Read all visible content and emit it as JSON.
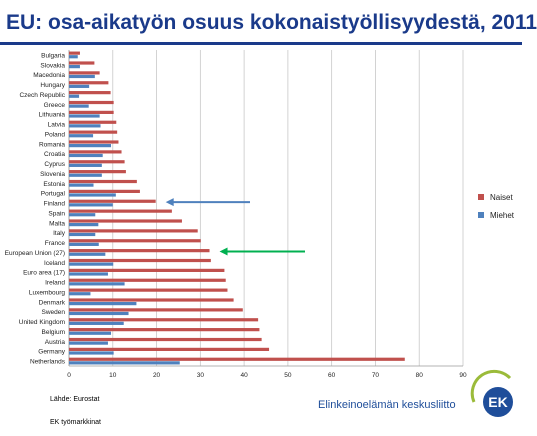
{
  "page": {
    "title": "EU: osa-aikatyön osuus kokonaistyöllisyydestä, 2011",
    "source": "Lähde: Eurostat",
    "department": "EK työmarkkinat",
    "brand_name": "Elinkeinoelämän keskusliitto",
    "logo_text": "EK"
  },
  "chart_data": {
    "type": "bar",
    "orientation": "horizontal",
    "title": "",
    "xlabel": "",
    "ylabel": "",
    "xlim": [
      0,
      90
    ],
    "xticks": [
      0,
      10,
      20,
      30,
      40,
      50,
      60,
      70,
      80,
      90
    ],
    "grid": true,
    "legend_position": "right",
    "categories": [
      "Bulgaria",
      "Slovakia",
      "Macedonia",
      "Hungary",
      "Czech Republic",
      "Greece",
      "Lithuania",
      "Latvia",
      "Poland",
      "Romania",
      "Croatia",
      "Cyprus",
      "Slovenia",
      "Estonia",
      "Portugal",
      "Finland",
      "Spain",
      "Malta",
      "Italy",
      "France",
      "European Union (27)",
      "Iceland",
      "Euro area (17)",
      "Ireland",
      "Luxembourg",
      "Denmark",
      "Sweden",
      "United Kingdom",
      "Belgium",
      "Austria",
      "Germany",
      "Netherlands"
    ],
    "series": [
      {
        "name": "Naiset",
        "color": "#c0504d",
        "values": [
          2.5,
          5.8,
          7.0,
          9.0,
          9.5,
          10.2,
          10.2,
          10.8,
          11.0,
          11.3,
          12.0,
          12.7,
          13.0,
          15.5,
          16.2,
          19.8,
          23.5,
          25.8,
          29.4,
          30.1,
          32.1,
          32.4,
          35.5,
          35.8,
          36.2,
          37.6,
          39.7,
          43.2,
          43.5,
          44.0,
          45.7,
          76.7
        ]
      },
      {
        "name": "Miehet",
        "color": "#4f81bd",
        "values": [
          2.0,
          2.5,
          5.9,
          4.6,
          2.3,
          4.5,
          7.0,
          7.2,
          5.5,
          9.6,
          7.7,
          7.5,
          7.5,
          5.6,
          10.7,
          10.0,
          6.0,
          6.7,
          6.0,
          6.8,
          8.3,
          10.1,
          8.9,
          12.7,
          4.9,
          15.4,
          13.6,
          12.5,
          9.6,
          8.9,
          10.2,
          25.3
        ]
      }
    ],
    "annotations": [
      {
        "type": "arrow",
        "color": "#4f81bd",
        "points_to": "Finland"
      },
      {
        "type": "arrow",
        "color": "#00b050",
        "points_to": "European Union (27)"
      }
    ]
  }
}
